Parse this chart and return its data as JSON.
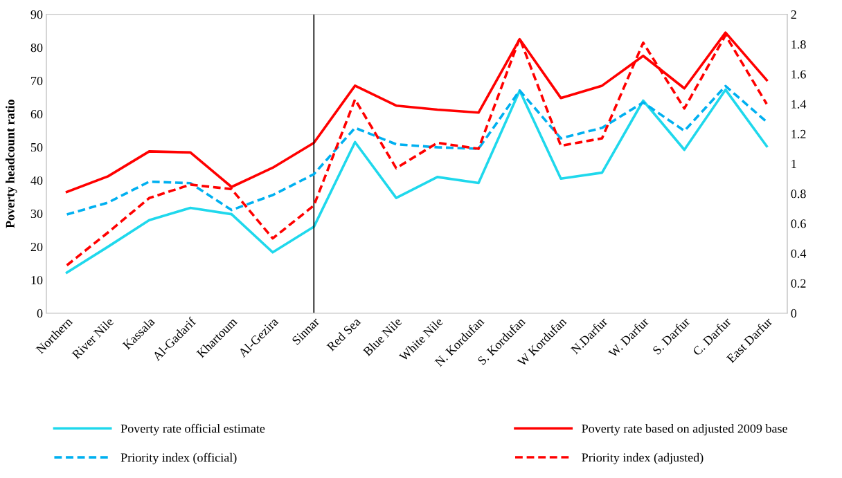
{
  "chart_data": {
    "type": "line",
    "ylabel": "Poverty headcount ratio",
    "categories": [
      "Northern",
      "River Nile",
      "Kassala",
      "Al-Gadarif",
      "Khartoum",
      "Al-Gezira",
      "Sinnar",
      "Red Sea",
      "Blue Nile",
      "White Nile",
      "N. Kordufan",
      "S. Kordufan",
      "W Kordufan",
      "N.Darfur",
      "W. Darfur",
      "S. Darfur",
      "C. Darfur",
      "East Darfur"
    ],
    "series": [
      {
        "name": "Poverty rate official estimate",
        "color": "#1fd8ec",
        "line_style": "solid",
        "values": [
          12.2,
          20,
          28,
          31.7,
          29.8,
          18.3,
          26,
          51.5,
          34.7,
          41,
          39.2,
          67,
          40.5,
          42.3,
          64,
          49.2,
          67.3,
          50.3
        ]
      },
      {
        "name": "Poverty rate based on adjusted 2009 base",
        "color": "#ff0000",
        "line_style": "solid",
        "values": [
          36.5,
          41.2,
          48.7,
          48.4,
          38,
          43.8,
          51.3,
          68.5,
          62.5,
          61.3,
          60.4,
          82.5,
          64.8,
          68.5,
          77.5,
          67.7,
          84.5,
          70.2
        ]
      },
      {
        "name": "Priority index (official)",
        "color": "#00b0f0",
        "line_style": "dashed",
        "axis": "y2",
        "values": [
          0.66,
          0.74,
          0.88,
          0.87,
          0.69,
          0.79,
          0.93,
          1.24,
          1.13,
          1.11,
          1.1,
          1.49,
          1.17,
          1.24,
          1.41,
          1.22,
          1.52,
          1.28
        ]
      },
      {
        "name": "Priority index (adjusted)",
        "color": "#ff0000",
        "line_style": "dashed",
        "axis": "y2",
        "values": [
          0.32,
          0.54,
          0.77,
          0.86,
          0.83,
          0.5,
          0.72,
          1.43,
          0.97,
          1.14,
          1.1,
          1.84,
          1.12,
          1.17,
          1.81,
          1.37,
          1.86,
          1.4
        ]
      }
    ],
    "ylim": [
      0,
      90
    ],
    "yticks": [
      0,
      10,
      20,
      30,
      40,
      50,
      60,
      70,
      80,
      90
    ],
    "y2lim": [
      0,
      2
    ],
    "y2ticks": [
      0,
      0.2,
      0.4,
      0.6,
      0.8,
      1,
      1.2,
      1.4,
      1.6,
      1.8,
      2
    ],
    "ref_lines": [
      {
        "axis": "x",
        "value": "Sinnar",
        "color": "#000000",
        "line_style": "solid"
      }
    ],
    "grid": false,
    "legend": "bottom",
    "marker": "none"
  }
}
